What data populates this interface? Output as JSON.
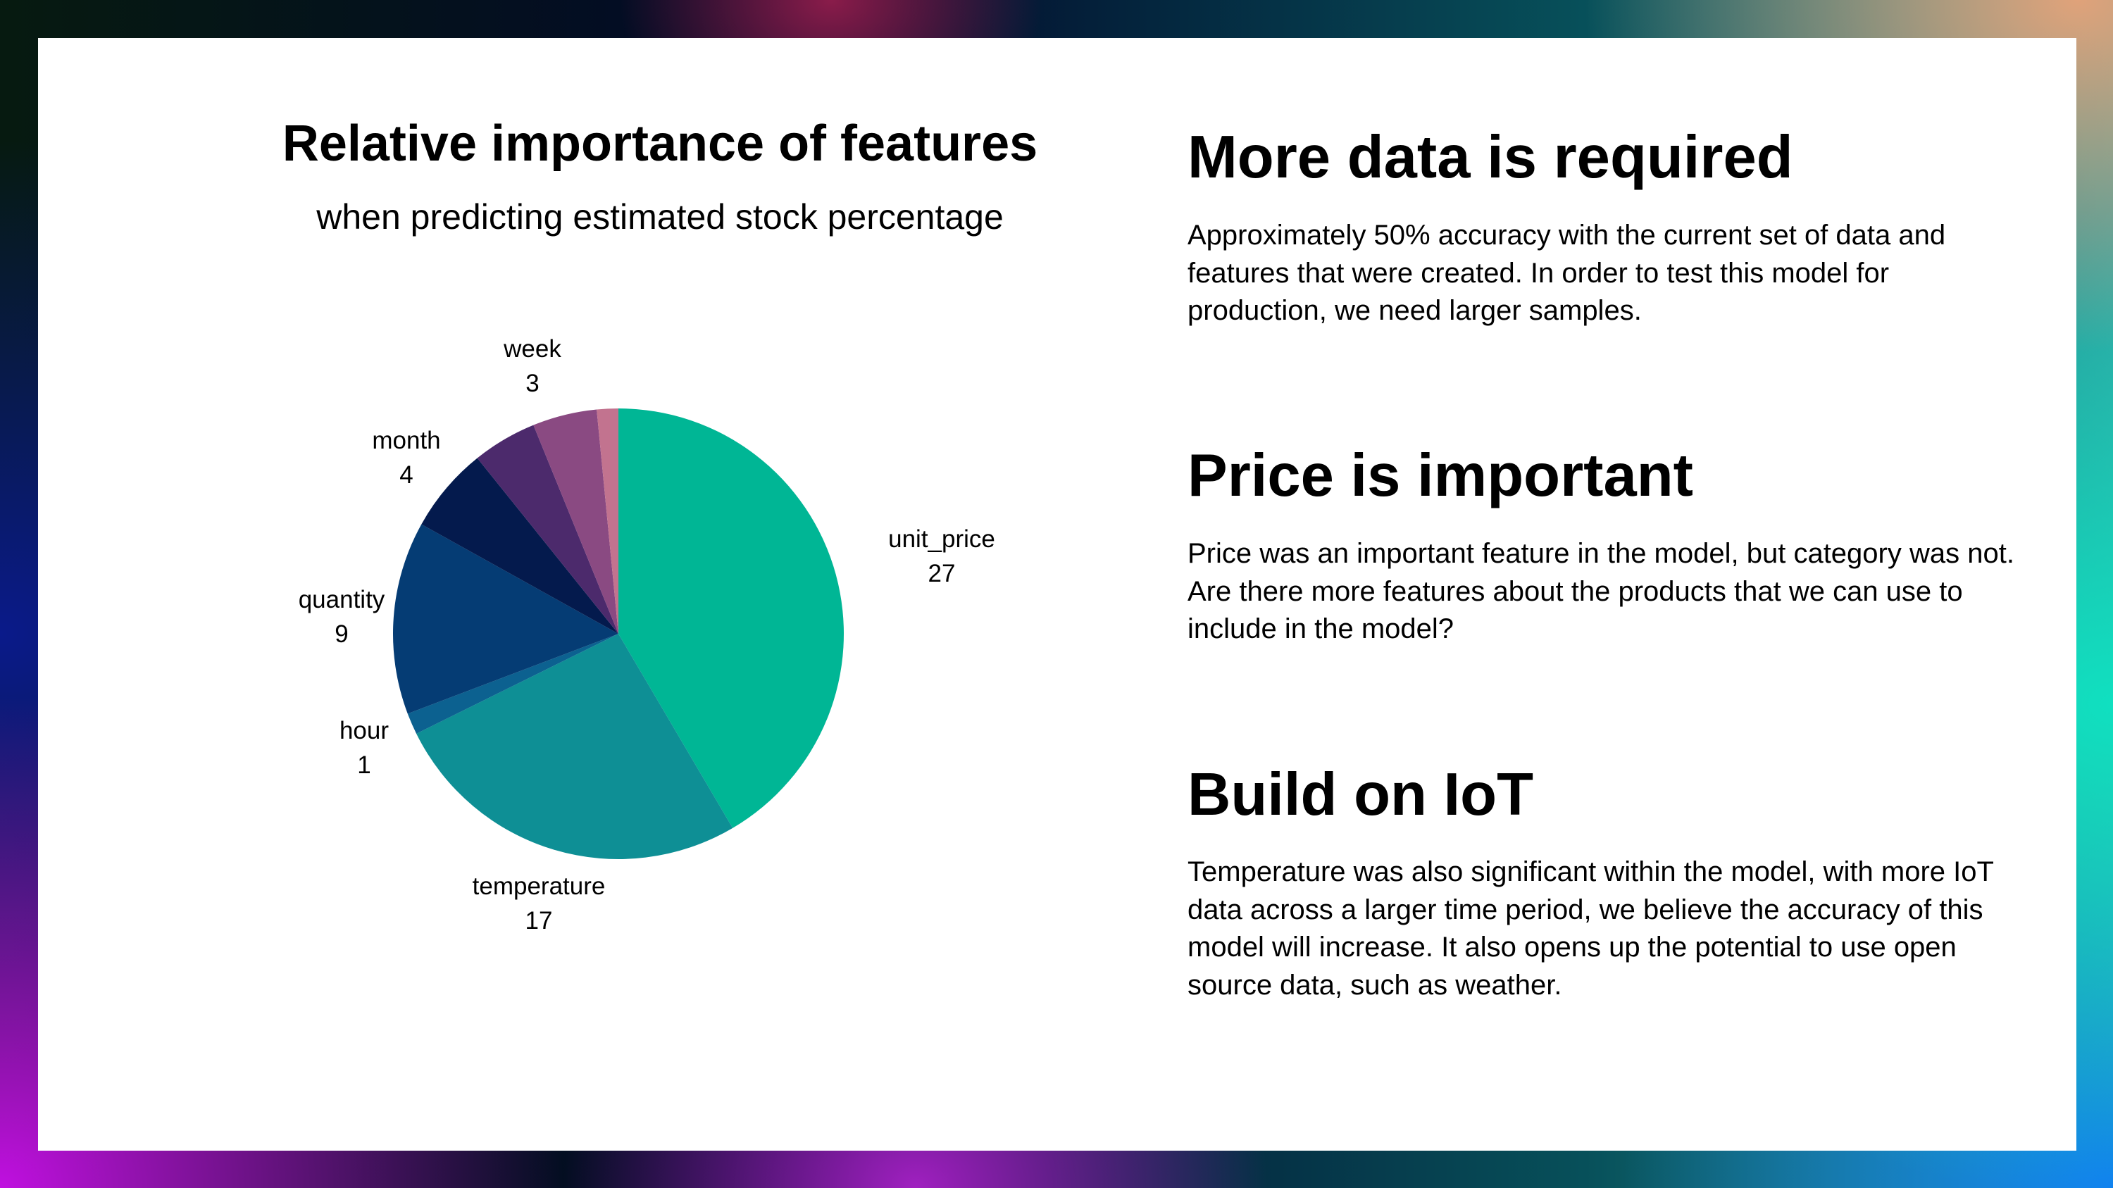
{
  "chart_data": {
    "type": "pie",
    "title": "Relative importance of features",
    "subtitle": "when predicting estimated stock percentage",
    "slices": [
      {
        "label": "unit_price",
        "value": 27,
        "color": "#00b695"
      },
      {
        "label": "temperature",
        "value": 17,
        "color": "#0e8f95"
      },
      {
        "label": "hour",
        "value": 1,
        "color": "#0c6190"
      },
      {
        "label": "quantity",
        "value": 9,
        "color": "#053c74"
      },
      {
        "label": "month",
        "value": 4,
        "color": "#041a4d"
      },
      {
        "label": "",
        "value": 3,
        "color": "#4c2a6c"
      },
      {
        "label": "week",
        "value": 3,
        "color": "#8a4a82"
      },
      {
        "label": "",
        "value": 1,
        "color": "#c2738f"
      }
    ],
    "displayed_labels": [
      {
        "label": "week",
        "value": "3"
      },
      {
        "label": "month",
        "value": "4"
      },
      {
        "label": "unit_price",
        "value": "27"
      },
      {
        "label": "quantity",
        "value": "9"
      },
      {
        "label": "hour",
        "value": "1"
      },
      {
        "label": "temperature",
        "value": "17"
      }
    ]
  },
  "sections": [
    {
      "heading": "More data is required",
      "body": "Approximately 50% accuracy with the current set of data and features that were created. In order to test this model for production, we need larger samples."
    },
    {
      "heading": "Price is important",
      "body": "Price was an important feature in the model, but category was not. Are there more features about the products that we can use to include in the model?"
    },
    {
      "heading": "Build on IoT",
      "body": "Temperature was also significant within the model, with more IoT data across a larger time period, we believe the accuracy of this model will increase. It also opens up the potential to use open source data, such as weather."
    }
  ]
}
